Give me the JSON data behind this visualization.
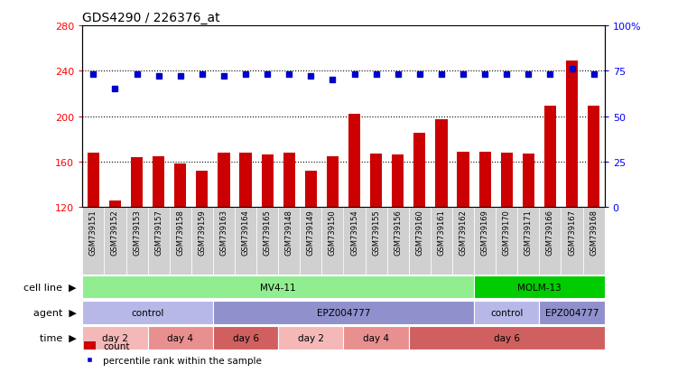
{
  "title": "GDS4290 / 226376_at",
  "samples": [
    "GSM739151",
    "GSM739152",
    "GSM739153",
    "GSM739157",
    "GSM739158",
    "GSM739159",
    "GSM739163",
    "GSM739164",
    "GSM739165",
    "GSM739148",
    "GSM739149",
    "GSM739150",
    "GSM739154",
    "GSM739155",
    "GSM739156",
    "GSM739160",
    "GSM739161",
    "GSM739162",
    "GSM739169",
    "GSM739170",
    "GSM739171",
    "GSM739166",
    "GSM739167",
    "GSM739168"
  ],
  "counts_full": [
    168,
    126,
    164,
    165,
    158,
    152,
    168,
    168,
    166,
    168,
    152,
    165,
    202,
    167,
    166,
    185,
    197,
    169,
    169,
    168,
    167,
    209,
    249,
    209
  ],
  "percentile_ranks": [
    73,
    65,
    73,
    72,
    72,
    73,
    72,
    73,
    73,
    73,
    72,
    70,
    73,
    73,
    73,
    73,
    73,
    73,
    73,
    73,
    73,
    73,
    76,
    73
  ],
  "bar_color": "#cc0000",
  "dot_color": "#0000cc",
  "ylim_left": [
    120,
    280
  ],
  "ylim_right": [
    0,
    100
  ],
  "yticks_left": [
    120,
    160,
    200,
    240,
    280
  ],
  "yticks_right": [
    0,
    25,
    50,
    75,
    100
  ],
  "ytick_labels_right": [
    "0",
    "25",
    "50",
    "75",
    "100%"
  ],
  "grid_vals": [
    160,
    200,
    240
  ],
  "cell_line_groups": [
    {
      "label": "MV4-11",
      "start": 0,
      "end": 18,
      "color": "#90ee90"
    },
    {
      "label": "MOLM-13",
      "start": 18,
      "end": 24,
      "color": "#00cc00"
    }
  ],
  "agent_groups": [
    {
      "label": "control",
      "start": 0,
      "end": 6,
      "color": "#b8b8e8"
    },
    {
      "label": "EPZ004777",
      "start": 6,
      "end": 18,
      "color": "#9090cc"
    },
    {
      "label": "control",
      "start": 18,
      "end": 21,
      "color": "#b8b8e8"
    },
    {
      "label": "EPZ004777",
      "start": 21,
      "end": 24,
      "color": "#9090cc"
    }
  ],
  "time_groups": [
    {
      "label": "day 2",
      "start": 0,
      "end": 3,
      "color": "#f5b8b8"
    },
    {
      "label": "day 4",
      "start": 3,
      "end": 6,
      "color": "#e89090"
    },
    {
      "label": "day 6",
      "start": 6,
      "end": 9,
      "color": "#d06060"
    },
    {
      "label": "day 2",
      "start": 9,
      "end": 12,
      "color": "#f5b8b8"
    },
    {
      "label": "day 4",
      "start": 12,
      "end": 15,
      "color": "#e89090"
    },
    {
      "label": "day 6",
      "start": 15,
      "end": 24,
      "color": "#d06060"
    }
  ],
  "legend_items": [
    {
      "color": "#cc0000",
      "label": "count"
    },
    {
      "color": "#0000cc",
      "label": "percentile rank within the sample"
    }
  ],
  "bg_color": "#ffffff",
  "plot_bg_color": "#ffffff",
  "xlabel_bg_color": "#d0d0d0",
  "title_fontsize": 10,
  "tick_fontsize": 8,
  "label_fontsize": 8,
  "bar_width": 0.55
}
